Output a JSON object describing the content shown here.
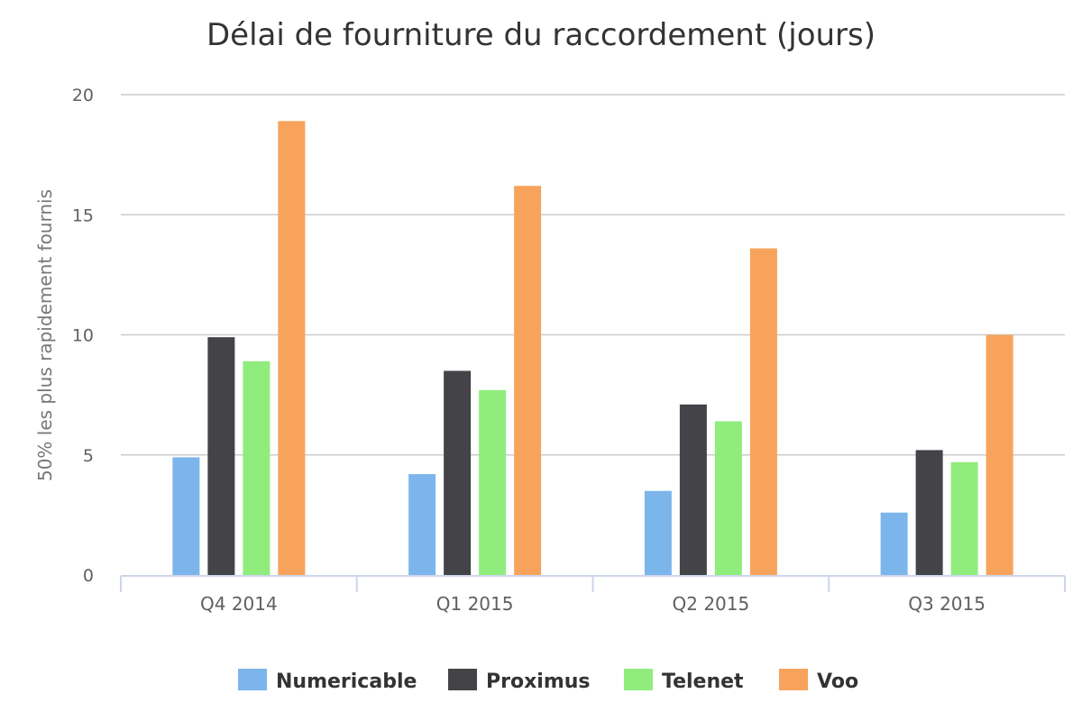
{
  "chart_data": {
    "type": "bar",
    "title": "Délai de fourniture du raccordement (jours)",
    "xlabel": "",
    "ylabel": "50% les plus rapidement fournis",
    "categories": [
      "Q4 2014",
      "Q1 2015",
      "Q2 2015",
      "Q3 2015"
    ],
    "y_ticks": [
      "0",
      "5",
      "10",
      "15",
      "20"
    ],
    "ylim": [
      0,
      20
    ],
    "grid": true,
    "legend_position": "bottom",
    "series": [
      {
        "name": "Numericable",
        "color": "#7cb5ec",
        "values": [
          4.9,
          4.2,
          3.5,
          2.6
        ]
      },
      {
        "name": "Proximus",
        "color": "#434348",
        "values": [
          9.9,
          8.5,
          7.1,
          5.2
        ]
      },
      {
        "name": "Telenet",
        "color": "#90ed7d",
        "values": [
          8.9,
          7.7,
          6.4,
          4.7
        ]
      },
      {
        "name": "Voo",
        "color": "#f7a35c",
        "values": [
          18.9,
          16.2,
          13.6,
          10.0
        ]
      }
    ]
  }
}
